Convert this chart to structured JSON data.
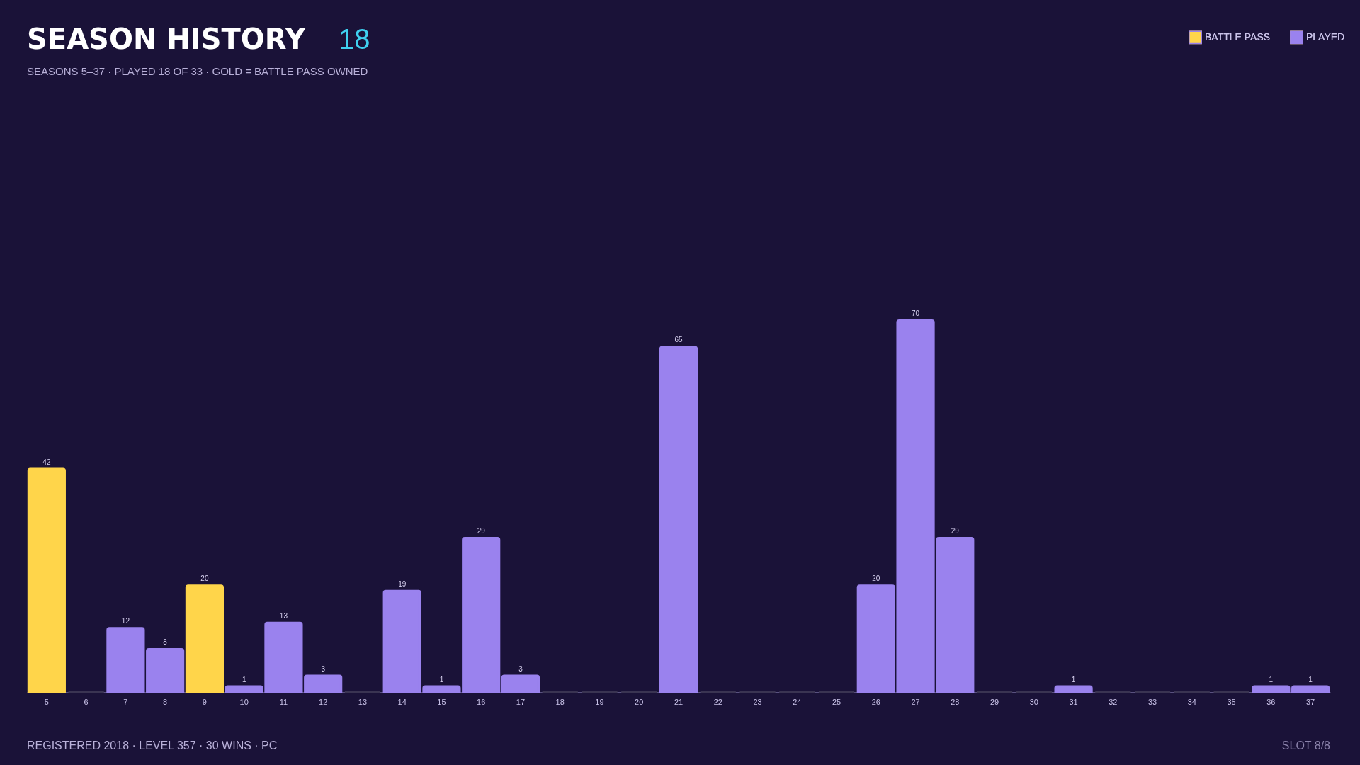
{
  "chart_data": {
    "type": "bar",
    "title": "SEASON HISTORY",
    "subtitle": "SEASONS 5–37  ·  PLAYED 18 OF 33  ·  GOLD = BATTLE PASS OWNED",
    "categories": [
      "5",
      "6",
      "7",
      "8",
      "9",
      "10",
      "11",
      "12",
      "13",
      "14",
      "15",
      "16",
      "17",
      "18",
      "19",
      "20",
      "21",
      "22",
      "23",
      "24",
      "25",
      "26",
      "27",
      "28",
      "29",
      "30",
      "31",
      "32",
      "33",
      "34",
      "35",
      "36",
      "37"
    ],
    "series": [
      {
        "name": "BATTLE PASS",
        "color": "#ffd54a",
        "values": [
          42,
          null,
          null,
          null,
          20,
          null,
          null,
          null,
          null,
          null,
          null,
          null,
          null,
          null,
          null,
          null,
          null,
          null,
          null,
          null,
          null,
          null,
          null,
          null,
          null,
          null,
          null,
          null,
          null,
          null,
          null,
          null,
          null
        ],
        "value_labels": [
          "42",
          null,
          null,
          null,
          "20",
          null,
          null,
          null,
          null,
          null,
          null,
          null,
          null,
          null,
          null,
          null,
          null,
          null,
          null,
          null,
          null,
          null,
          null,
          null,
          null,
          null,
          null,
          null,
          null,
          null,
          null,
          null,
          null
        ]
      },
      {
        "name": "PLAYED",
        "color": "#9a82ee",
        "values": [
          null,
          null,
          12,
          8,
          null,
          1,
          13,
          3,
          null,
          19,
          1,
          29,
          3,
          null,
          null,
          null,
          65,
          null,
          null,
          null,
          null,
          20,
          70,
          29,
          null,
          null,
          1,
          null,
          null,
          null,
          null,
          1,
          1
        ],
        "value_labels": [
          null,
          null,
          "12",
          "8",
          null,
          "1",
          "13",
          "3",
          null,
          "19",
          "1",
          "29",
          "3",
          null,
          null,
          null,
          "65",
          null,
          null,
          null,
          null,
          "20",
          "70",
          "29",
          null,
          null,
          "1",
          null,
          null,
          null,
          null,
          "1",
          "1"
        ]
      },
      {
        "color": "#3a3452",
        "values": [
          null,
          0,
          null,
          null,
          null,
          null,
          null,
          null,
          0,
          null,
          null,
          null,
          null,
          0,
          0,
          0,
          null,
          0,
          0,
          0,
          0,
          null,
          null,
          null,
          0,
          0,
          null,
          0,
          0,
          0,
          0,
          null,
          null
        ]
      }
    ],
    "legend": "top right",
    "grid": false,
    "annotations": [
      "18",
      "REGISTERED 2018  ·  LEVEL 357  ·  30 WINS  ·  PC",
      "SLOT 8/8"
    ]
  }
}
